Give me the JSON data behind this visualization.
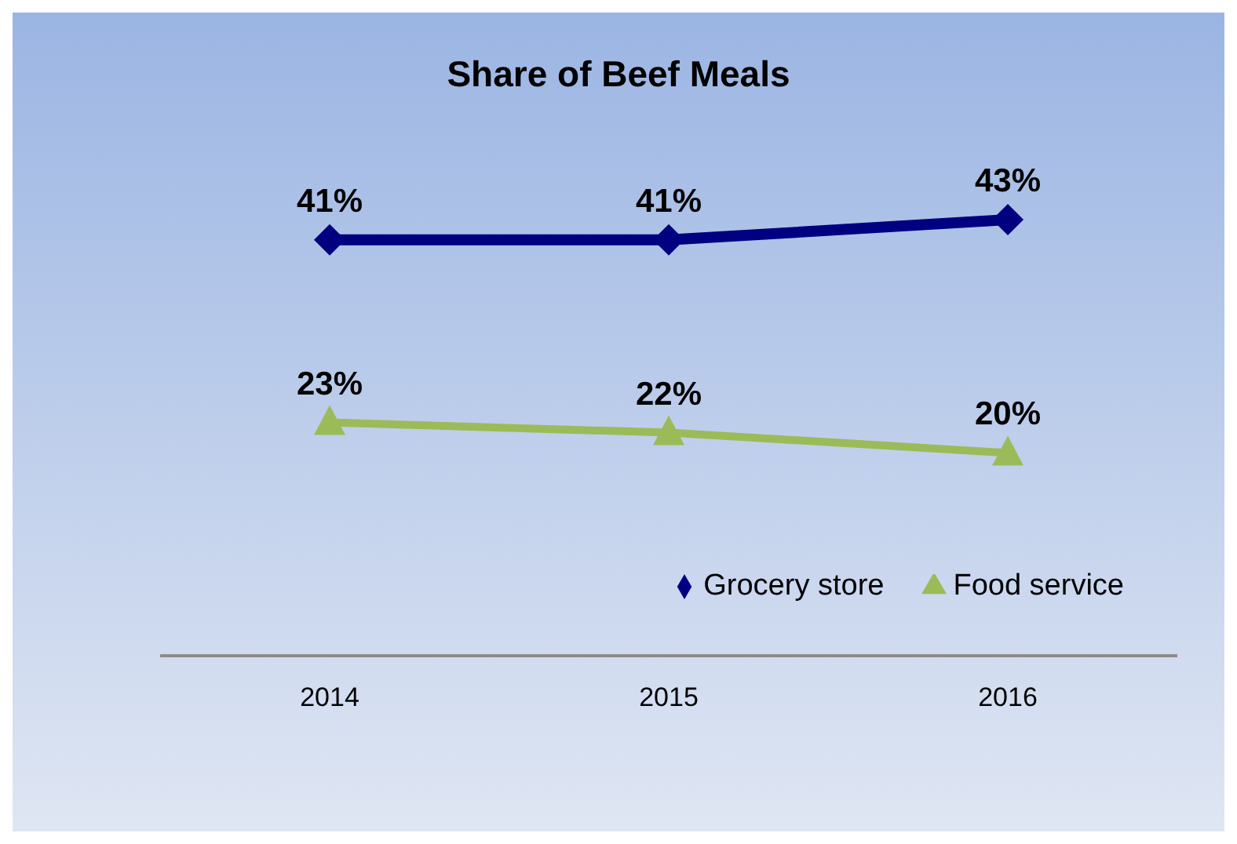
{
  "chart_data": {
    "type": "line",
    "title": "Share of Beef Meals",
    "categories": [
      "2014",
      "2015",
      "2016"
    ],
    "series": [
      {
        "name": "Grocery store",
        "color": "#000080",
        "marker": "diamond",
        "values": [
          41,
          41,
          43
        ],
        "value_labels": [
          "41%",
          "41%",
          "43%"
        ]
      },
      {
        "name": "Food service",
        "color": "#9bbb59",
        "marker": "triangle",
        "values": [
          23,
          22,
          20
        ],
        "value_labels": [
          "23%",
          "22%",
          "20%"
        ]
      }
    ],
    "legend": "bottom right"
  }
}
